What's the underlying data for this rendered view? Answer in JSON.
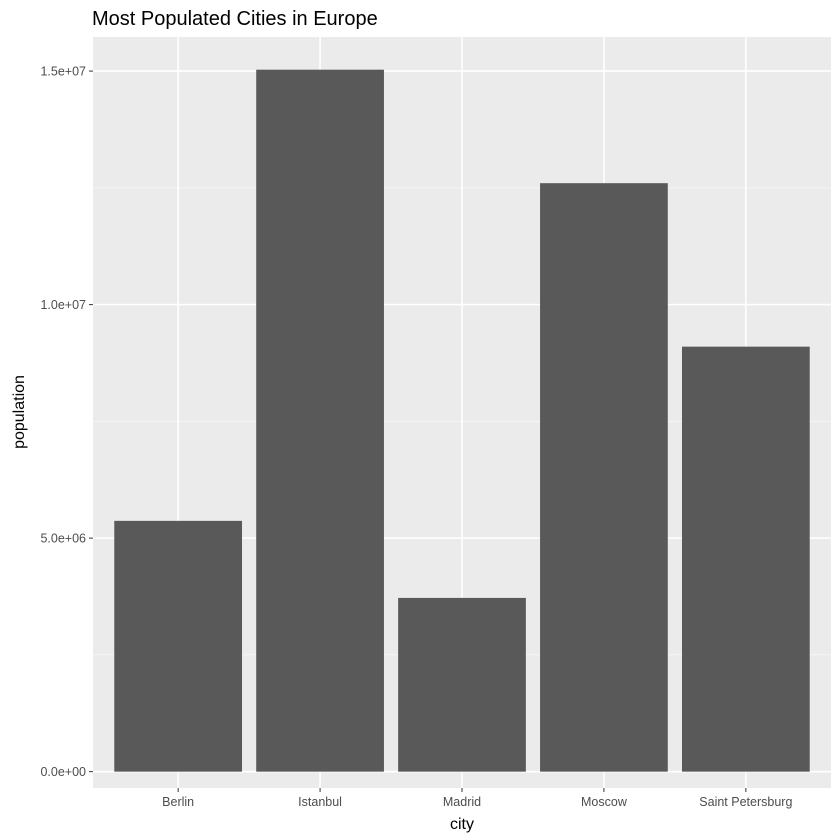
{
  "chart_data": {
    "type": "bar",
    "title": "Most Populated Cities in Europe",
    "xlabel": "city",
    "ylabel": "population",
    "categories": [
      "Berlin",
      "Istanbul",
      "Madrid",
      "Moscow",
      "Saint Petersburg"
    ],
    "values": [
      5370000,
      15030000,
      3720000,
      12600000,
      9100000
    ],
    "ylim": [
      -350000,
      15730000
    ],
    "yticks": [
      0,
      5000000,
      10000000,
      15000000
    ],
    "ytick_labels": [
      "0.0e+00",
      "5.0e+06",
      "1.0e+07",
      "1.5e+07"
    ],
    "grid": true,
    "legend": "none"
  },
  "colors": {
    "panel": "#ebebeb",
    "grid_major": "#ffffff",
    "grid_minor": "#f5f5f5",
    "bar": "#595959",
    "tick": "#333333",
    "text": "#000000",
    "tick_text": "#4d4d4d"
  }
}
